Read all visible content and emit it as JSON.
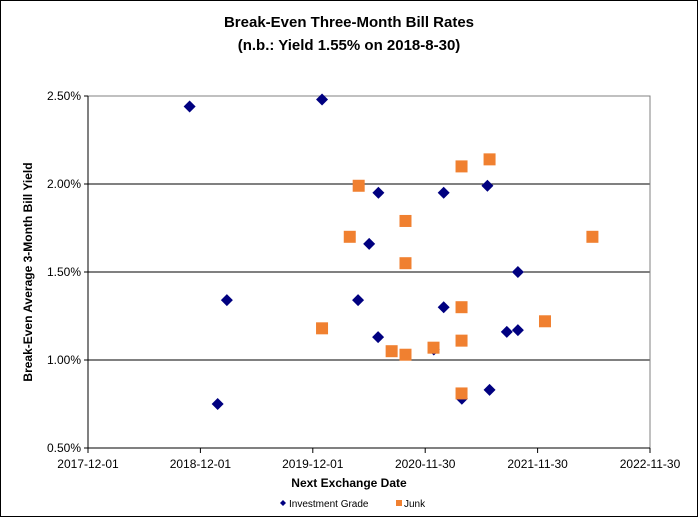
{
  "chart_data": {
    "type": "scatter",
    "title": "Break-Even Three-Month Bill Rates",
    "subtitle": "(n.b.: Yield 1.55% on 2018-8-30)",
    "xlabel": "Next Exchange Date",
    "ylabel": "Break-Even Average 3-Month Bill Yield",
    "xlim": [
      "2017-12-01",
      "2022-11-30"
    ],
    "ylim": [
      0.5,
      2.5
    ],
    "x_ticks": [
      "2017-12-01",
      "2018-12-01",
      "2019-12-01",
      "2020-11-30",
      "2021-11-30",
      "2022-11-30"
    ],
    "y_ticks": [
      {
        "value": 0.5,
        "label": "0.50%"
      },
      {
        "value": 1.0,
        "label": "1.00%"
      },
      {
        "value": 1.5,
        "label": "1.50%"
      },
      {
        "value": 2.0,
        "label": "2.00%"
      },
      {
        "value": 2.5,
        "label": "2.50%"
      }
    ],
    "grid": "horizontal",
    "legend_position": "bottom",
    "series": [
      {
        "name": "Investment Grade",
        "marker": "diamond",
        "color": "#000080",
        "points": [
          [
            "2018-10-27",
            2.44
          ],
          [
            "2019-12-31",
            2.48
          ],
          [
            "2020-07-01",
            1.95
          ],
          [
            "2021-01-29",
            1.95
          ],
          [
            "2021-06-20",
            1.99
          ],
          [
            "2020-06-01",
            1.66
          ],
          [
            "2021-09-27",
            1.5
          ],
          [
            "2019-02-25",
            1.34
          ],
          [
            "2020-04-26",
            1.34
          ],
          [
            "2021-01-29",
            1.3
          ],
          [
            "2020-06-30",
            1.13
          ],
          [
            "2021-08-22",
            1.16
          ],
          [
            "2021-09-27",
            1.17
          ],
          [
            "2020-12-28",
            1.06
          ],
          [
            "2019-01-26",
            0.75
          ],
          [
            "2021-03-29",
            0.78
          ],
          [
            "2021-06-27",
            0.83
          ]
        ]
      },
      {
        "name": "Junk",
        "marker": "square",
        "color": "#F08030",
        "points": [
          [
            "2020-04-28",
            1.99
          ],
          [
            "2021-03-28",
            2.1
          ],
          [
            "2021-06-27",
            2.14
          ],
          [
            "2020-09-27",
            1.79
          ],
          [
            "2020-03-30",
            1.7
          ],
          [
            "2022-05-27",
            1.7
          ],
          [
            "2020-09-27",
            1.55
          ],
          [
            "2021-03-28",
            1.3
          ],
          [
            "2019-12-31",
            1.18
          ],
          [
            "2021-12-24",
            1.22
          ],
          [
            "2020-08-13",
            1.05
          ],
          [
            "2020-09-27",
            1.03
          ],
          [
            "2020-12-27",
            1.07
          ],
          [
            "2021-03-28",
            1.11
          ],
          [
            "2021-03-28",
            0.81
          ]
        ]
      }
    ]
  }
}
